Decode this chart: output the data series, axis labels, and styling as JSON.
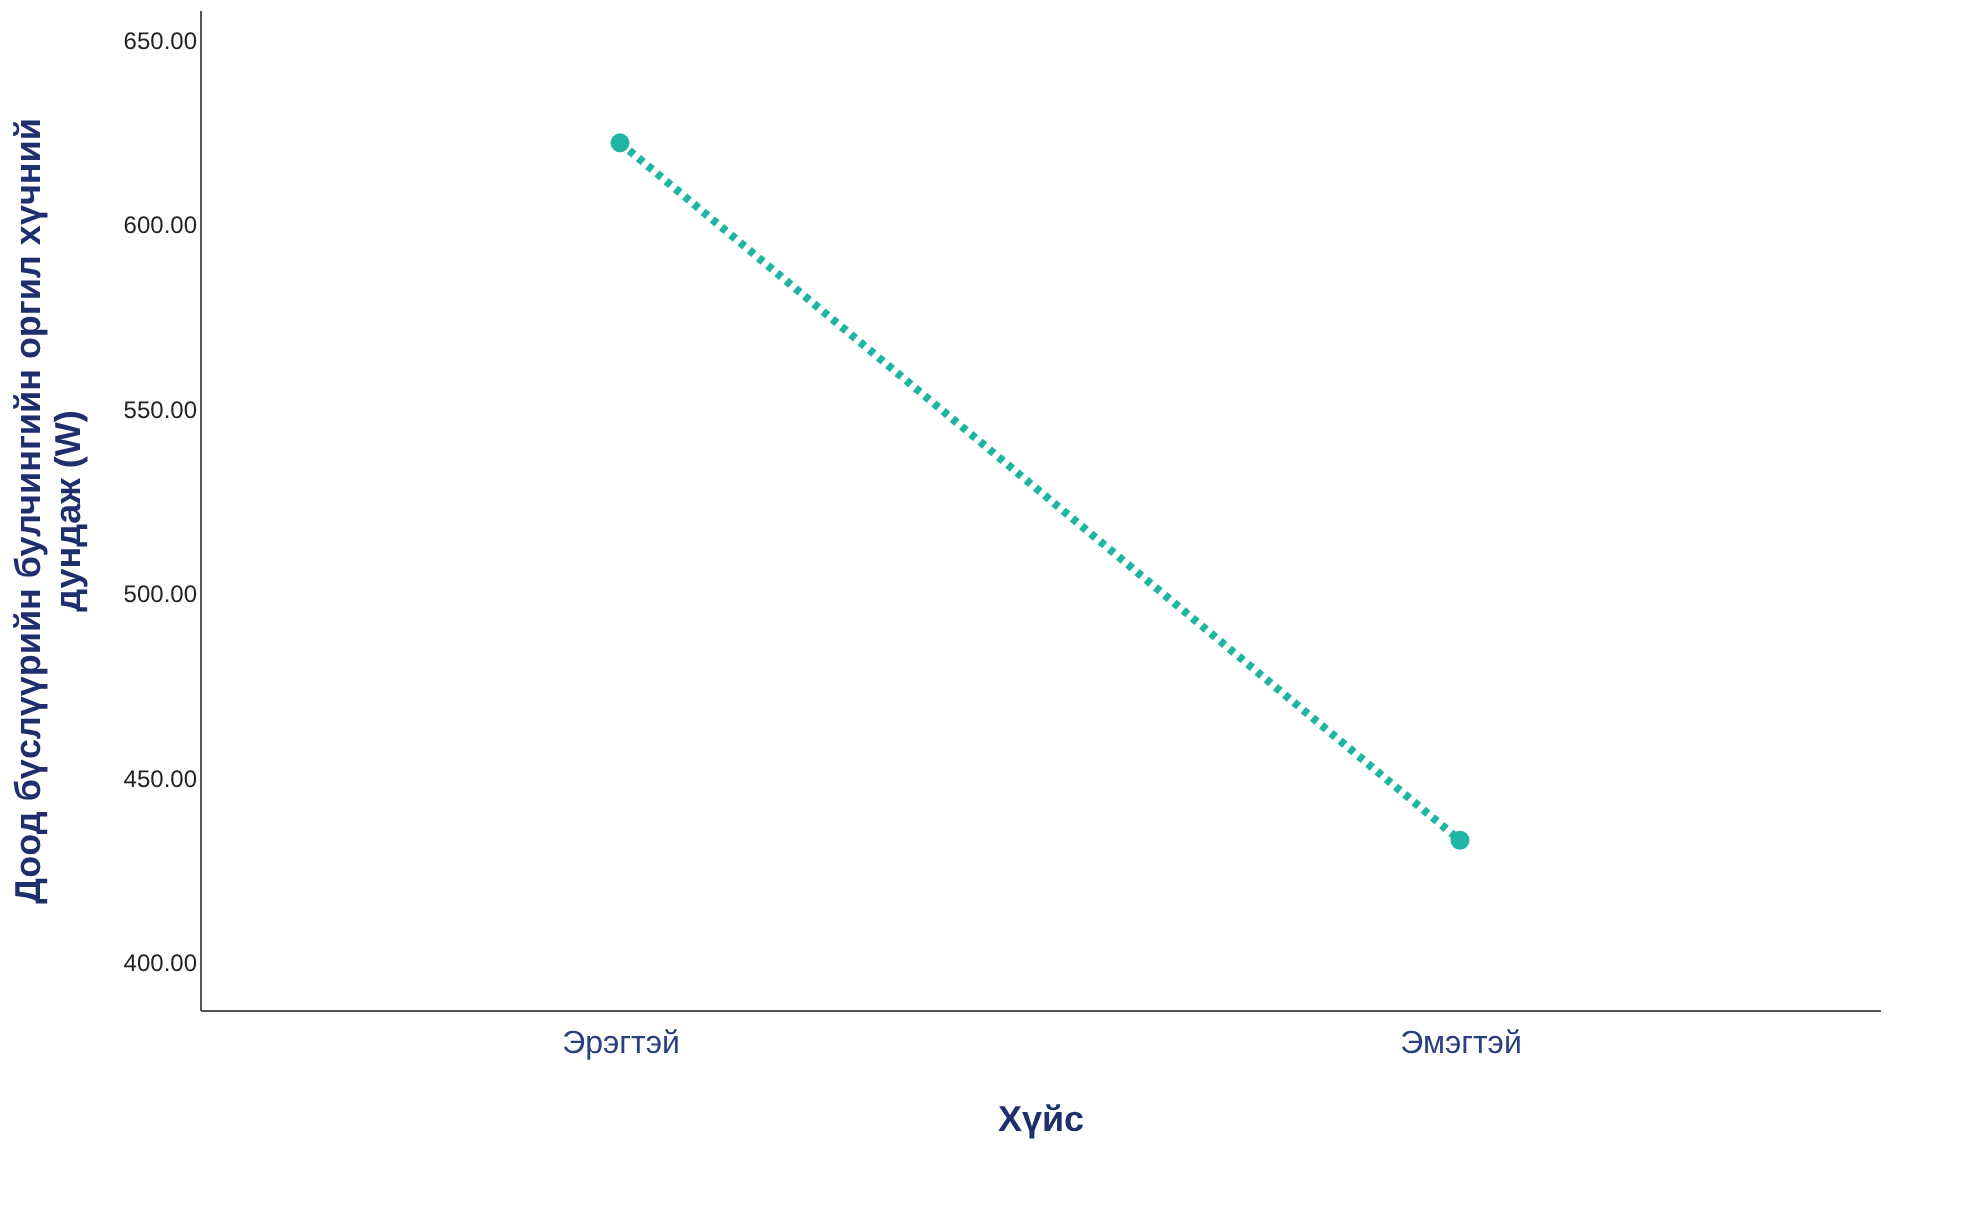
{
  "chart_data": {
    "type": "line",
    "xlabel": "Хүйс",
    "ylabel": "Доод бүслүүрийн булчингийн оргил хүчний дундаж (W)",
    "categories": [
      "Эрэгтэй",
      "Эмэгтэй"
    ],
    "series": [
      {
        "color": "#1fb5a0",
        "values": [
          622,
          433
        ]
      }
    ],
    "ylim": [
      387,
      658
    ],
    "yticks": [
      {
        "value": 400,
        "label": "400.00"
      },
      {
        "value": 450,
        "label": "450.00"
      },
      {
        "value": 500,
        "label": "500.00"
      },
      {
        "value": 550,
        "label": "550.00"
      },
      {
        "value": 600,
        "label": "600.00"
      },
      {
        "value": 650,
        "label": "650.00"
      }
    ],
    "grid": false,
    "marker": "circle",
    "line_style": "dotted"
  }
}
